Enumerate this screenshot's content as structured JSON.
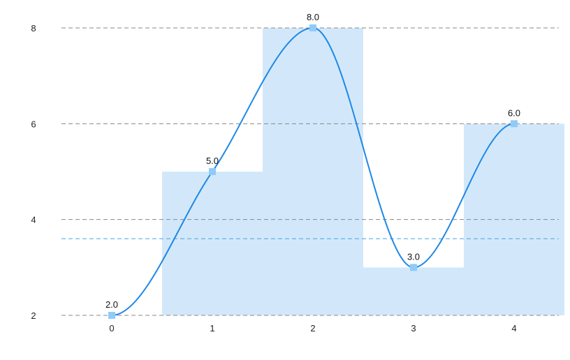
{
  "chart_data": {
    "type": "line",
    "title": "",
    "xlabel": "",
    "ylabel": "",
    "x": [
      0,
      1,
      2,
      3,
      4
    ],
    "x_tick_labels": [
      "0",
      "1",
      "2",
      "3",
      "4"
    ],
    "y_tick_labels": [
      "2",
      "4",
      "6",
      "8"
    ],
    "y_ticks": [
      2,
      4,
      6,
      8
    ],
    "xlim": [
      -0.5,
      4.5
    ],
    "ylim": [
      2,
      8
    ],
    "grid": "horizontal-dashed",
    "legend": "none",
    "series": [
      {
        "values": [
          2,
          5,
          8,
          3,
          6
        ],
        "value_labels": [
          "2.0",
          "5.0",
          "8.0",
          "3.0",
          "6.0"
        ],
        "line_style": "smooth",
        "step_area_fill": true
      }
    ],
    "reference_lines": [
      {
        "axis": "y",
        "value": 3.6,
        "style": "dashed"
      }
    ],
    "colors": {
      "line": "#1e88e5",
      "area": "#d2e8fa",
      "marker": "#90caf9",
      "grid": "#888888",
      "reference": "#4aa3df"
    }
  }
}
